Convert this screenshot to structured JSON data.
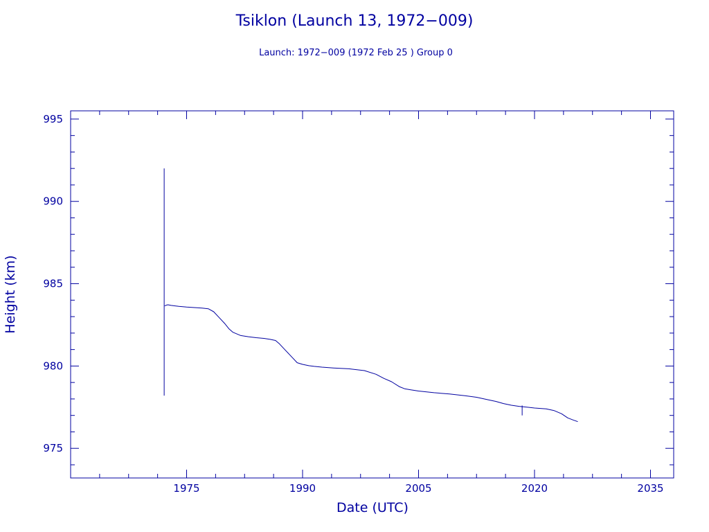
{
  "chart_data": {
    "type": "line",
    "title": "Tsiklon (Launch 13, 1972−009)",
    "subtitle": "Launch: 1972−009  (1972 Feb 25 )  Group 0",
    "xlabel": "Date (UTC)",
    "ylabel": "Height (km)",
    "xlim": [
      1960,
      2038
    ],
    "ylim": [
      973.2,
      995.5
    ],
    "x_ticks": [
      1975,
      1990,
      2005,
      2020,
      2035
    ],
    "y_ticks": [
      975,
      980,
      985,
      990,
      995
    ],
    "grid": false,
    "legend": "none",
    "color": "#0000a0",
    "series": [
      {
        "x": [
          1972.16,
          1972.4,
          1972.6,
          1973.0,
          1974.0,
          1975.0,
          1976.0,
          1977.0,
          1977.8,
          1978.5,
          1979.2,
          1979.9,
          1980.5,
          1981.0,
          1982.0,
          1983.0,
          1984.0,
          1985.0,
          1985.8,
          1986.5,
          1987.0,
          1987.8,
          1988.6,
          1989.3,
          1990.0,
          1990.8,
          1991.5,
          1992.5,
          1994.0,
          1996.0,
          1998.0,
          1999.5,
          2000.5,
          2001.5,
          2002.5,
          2003.2,
          2004.0,
          2005.0,
          2007.0,
          2009.0,
          2011.0,
          2012.5,
          2014.0,
          2015.0,
          2016.0,
          2017.0,
          2018.0,
          2019.0,
          2020.0,
          2021.5,
          2022.5,
          2023.5,
          2024.3,
          2025.0,
          2025.6
        ],
        "y": [
          983.65,
          983.7,
          983.72,
          983.68,
          983.62,
          983.58,
          983.55,
          983.52,
          983.48,
          983.3,
          982.95,
          982.6,
          982.25,
          982.05,
          981.85,
          981.78,
          981.72,
          981.68,
          981.62,
          981.55,
          981.35,
          980.95,
          980.55,
          980.2,
          980.1,
          980.02,
          979.98,
          979.93,
          979.88,
          979.83,
          979.72,
          979.5,
          979.25,
          979.05,
          978.75,
          978.62,
          978.55,
          978.48,
          978.38,
          978.3,
          978.2,
          978.1,
          977.95,
          977.85,
          977.72,
          977.62,
          977.55,
          977.5,
          977.45,
          977.4,
          977.3,
          977.1,
          976.85,
          976.72,
          976.62
        ]
      }
    ],
    "spikes": [
      {
        "x": 1972.1,
        "y_low": 978.2,
        "y_high": 992.0
      },
      {
        "x": 2018.4,
        "y_low": 977.0,
        "y_high": 977.6
      }
    ]
  }
}
